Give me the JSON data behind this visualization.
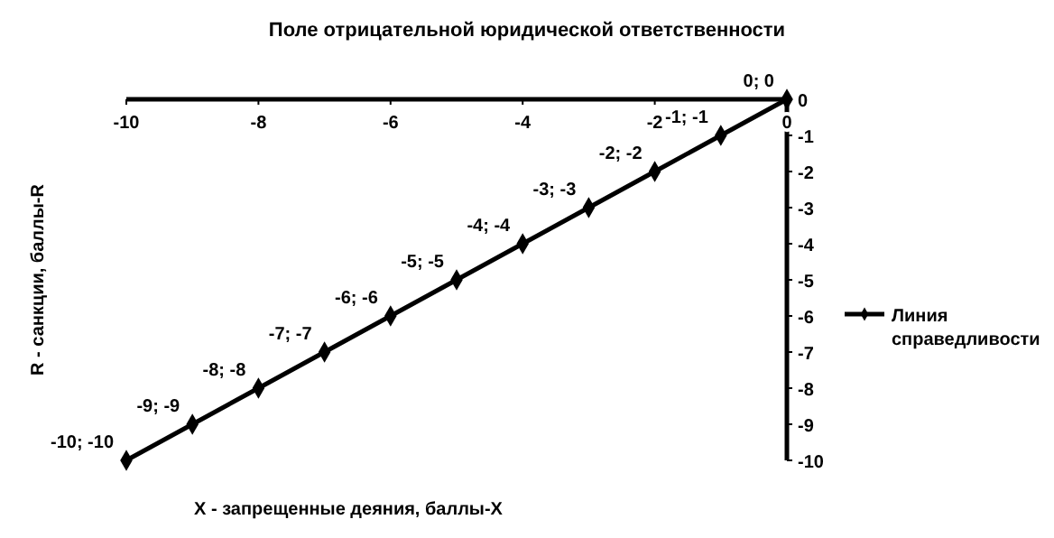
{
  "chart_data": {
    "type": "line",
    "title": "Поле отрицательной юридической ответственности",
    "xlabel": "X - запрещенные деяния, баллы-X",
    "ylabel": "R - санкции, баллы-R",
    "x": [
      -10,
      -9,
      -8,
      -7,
      -6,
      -5,
      -4,
      -3,
      -2,
      -1,
      0
    ],
    "series": [
      {
        "name": "Линия справедливости",
        "color": "#000000",
        "values": [
          -10,
          -9,
          -8,
          -7,
          -6,
          -5,
          -4,
          -3,
          -2,
          -1,
          0
        ],
        "value_labels": [
          "-10; -10",
          "-9; -9",
          "-8; -8",
          "-7; -7",
          "-6; -6",
          "-5; -5",
          "-4; -4",
          "-3; -3",
          "-2; -2",
          "-1; -1",
          "0; 0"
        ]
      }
    ],
    "xlim": [
      -10,
      0
    ],
    "xticks": [
      -10,
      -8,
      -6,
      -4,
      -2,
      0
    ],
    "ylim": [
      -10,
      0
    ],
    "yticks": [
      0,
      -1,
      -2,
      -3,
      -4,
      -5,
      -6,
      -7,
      -8,
      -9,
      -10
    ],
    "grid": false,
    "legend": "right",
    "marker": "diamond",
    "line_style": "solid"
  }
}
